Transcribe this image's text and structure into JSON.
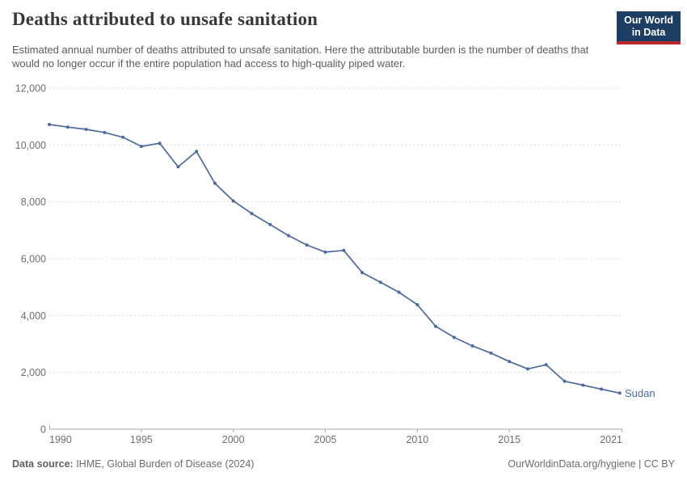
{
  "header": {
    "title": "Deaths attributed to unsafe sanitation",
    "subtitle": "Estimated annual number of deaths attributed to unsafe sanitation. Here the attributable burden is the number of deaths that would no longer occur if the entire population had access to high-quality piped water.",
    "logo": {
      "line1": "Our World",
      "line2": "in Data"
    }
  },
  "chart_data": {
    "type": "line",
    "title": "Deaths attributed to unsafe sanitation",
    "xlabel": "",
    "ylabel": "",
    "xlim": [
      1990,
      2021
    ],
    "ylim": [
      0,
      12000
    ],
    "grid": "horizontal-dashed",
    "legend_position": "end-of-line-label",
    "years": [
      1990,
      1991,
      1992,
      1993,
      1994,
      1995,
      1996,
      1997,
      1998,
      1999,
      2000,
      2001,
      2002,
      2003,
      2004,
      2005,
      2006,
      2007,
      2008,
      2009,
      2010,
      2011,
      2012,
      2013,
      2014,
      2015,
      2016,
      2017,
      2018,
      2019,
      2020,
      2021
    ],
    "series": [
      {
        "name": "Sudan",
        "values": [
          10720,
          10630,
          10550,
          10440,
          10270,
          9950,
          10060,
          9230,
          9770,
          8650,
          8030,
          7590,
          7200,
          6810,
          6480,
          6230,
          6290,
          5510,
          5170,
          4820,
          4380,
          3620,
          3230,
          2930,
          2680,
          2380,
          2120,
          2270,
          1690,
          1550,
          1410,
          1270
        ]
      }
    ],
    "yticks": [
      0,
      2000,
      4000,
      6000,
      8000,
      10000,
      12000
    ],
    "ytick_labels": [
      "0",
      "2,000",
      "4,000",
      "6,000",
      "8,000",
      "10,000",
      "12,000"
    ],
    "xticks": [
      1990,
      1995,
      2000,
      2005,
      2010,
      2015,
      2021
    ],
    "line_color": "#4c6a9c",
    "tick_label_color": "#6e6e6e",
    "gridline_color": "#dcdcdc",
    "axis_color": "#a9a9a9"
  },
  "footer": {
    "datasource_label": "Data source:",
    "datasource_value": " IHME, Global Burden of Disease (2024)",
    "credit": "OurWorldinData.org/hygiene | CC BY"
  },
  "colors": {
    "accent_blue": "#4c6a9c",
    "logo_navy": "#1d3d63",
    "logo_red": "#b7292f"
  }
}
